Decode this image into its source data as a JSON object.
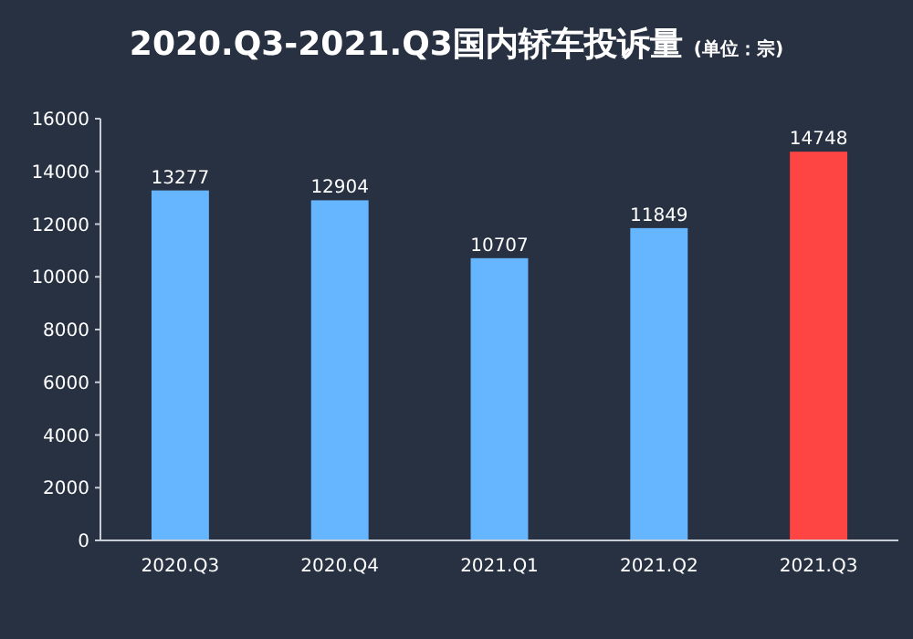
{
  "chart_data": {
    "type": "bar",
    "title": "2020.Q3-2021.Q3国内轿车投诉量",
    "subtitle": "(单位：宗)",
    "categories": [
      "2020.Q3",
      "2020.Q4",
      "2021.Q1",
      "2021.Q2",
      "2021.Q3"
    ],
    "values": [
      13277,
      12904,
      10707,
      11849,
      14748
    ],
    "colors": [
      "#66b5ff",
      "#66b5ff",
      "#66b5ff",
      "#66b5ff",
      "#ff4444"
    ],
    "ylim": [
      0,
      16000
    ],
    "yticks": [
      0,
      2000,
      4000,
      6000,
      8000,
      10000,
      12000,
      14000,
      16000
    ],
    "data_labels": true,
    "grid": false
  }
}
